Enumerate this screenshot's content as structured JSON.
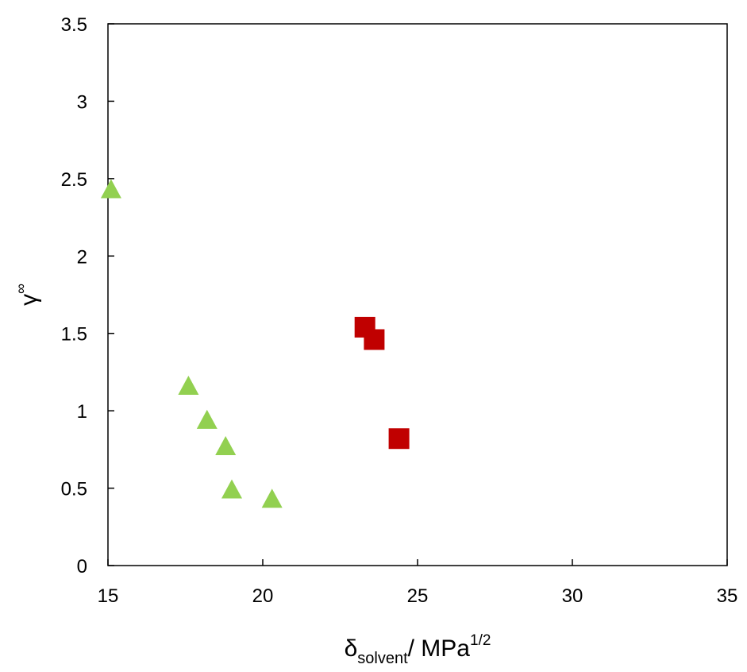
{
  "chart_data": {
    "type": "scatter",
    "title": "",
    "xlabel": {
      "main": "δ",
      "sub": "solvent",
      "rest": "/ MPa",
      "sup": "1/2"
    },
    "ylabel": {
      "main": "γ",
      "sup": "∞"
    },
    "xlim": [
      15,
      35
    ],
    "ylim": [
      0,
      3.5
    ],
    "xticks": [
      "15",
      "20",
      "25",
      "30",
      "35"
    ],
    "yticks": [
      "0",
      "0.5",
      "1",
      "1.5",
      "2",
      "2.5",
      "3",
      "3.5"
    ],
    "grid": false,
    "legend": "none",
    "series": [
      {
        "marker": "triangle",
        "color": "#92d050",
        "points": [
          {
            "x": 15.1,
            "y": 2.43
          },
          {
            "x": 17.6,
            "y": 1.16
          },
          {
            "x": 18.2,
            "y": 0.94
          },
          {
            "x": 18.8,
            "y": 0.77
          },
          {
            "x": 19.0,
            "y": 0.49
          },
          {
            "x": 20.3,
            "y": 0.43
          }
        ]
      },
      {
        "marker": "square",
        "color": "#c00000",
        "points": [
          {
            "x": 23.3,
            "y": 1.54
          },
          {
            "x": 23.6,
            "y": 1.46
          },
          {
            "x": 24.4,
            "y": 0.82
          }
        ]
      }
    ]
  }
}
